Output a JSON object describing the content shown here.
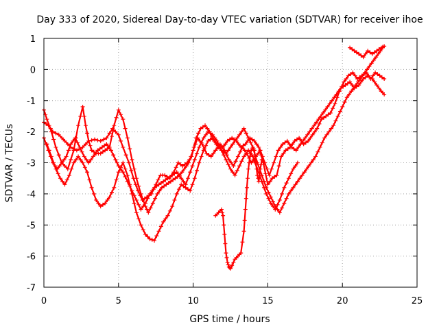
{
  "chart_data": {
    "type": "scatter",
    "title": "Day 333 of 2020, Sidereal Day-to-day VTEC variation (SDTVAR) for receiver ihoe",
    "xlabel": "GPS time / hours",
    "ylabel": "SDTVAR / TECUs",
    "xlim": [
      0,
      25
    ],
    "ylim": [
      -7,
      1
    ],
    "xticks": [
      0,
      5,
      10,
      15,
      20,
      25
    ],
    "yticks": [
      1,
      0,
      -1,
      -2,
      -3,
      -4,
      -5,
      -6,
      -7
    ],
    "grid": true,
    "marker": "plus",
    "color": "#ff0000",
    "series": [
      {
        "x": [
          0.0,
          0.3,
          0.6,
          1.0,
          1.4,
          1.8,
          2.2,
          2.6,
          3.0,
          3.4,
          3.8,
          4.2,
          4.6,
          5.0,
          5.3,
          5.7,
          6.0,
          6.3,
          6.6,
          6.9,
          7.2,
          7.5,
          7.8,
          8.1,
          8.4,
          8.7,
          9.0,
          9.3,
          9.6,
          9.9,
          10.2,
          10.5,
          10.8,
          11.1,
          11.4,
          11.7,
          12.0,
          12.3,
          12.6,
          12.9,
          13.2,
          13.5,
          13.8,
          14.1,
          14.4,
          14.7,
          15.0,
          15.3,
          15.6,
          15.9,
          16.2,
          16.5,
          16.8,
          17.1,
          17.4,
          17.7,
          18.0,
          18.3,
          18.6,
          18.9,
          19.2,
          19.5,
          19.8,
          20.1,
          20.4,
          20.7,
          21.0,
          21.3,
          21.6,
          21.9,
          22.2,
          22.5,
          22.8
        ],
        "y": [
          -1.7,
          -1.8,
          -2.0,
          -2.1,
          -2.3,
          -2.5,
          -2.6,
          -2.5,
          -2.3,
          -2.25,
          -2.3,
          -2.2,
          -1.9,
          -2.1,
          -2.5,
          -3.0,
          -3.5,
          -3.9,
          -4.2,
          -4.1,
          -4.0,
          -3.7,
          -3.4,
          -3.4,
          -3.5,
          -3.3,
          -3.0,
          -3.1,
          -3.0,
          -2.8,
          -2.2,
          -1.9,
          -1.8,
          -2.0,
          -2.3,
          -2.5,
          -2.5,
          -2.3,
          -2.2,
          -2.3,
          -2.5,
          -2.4,
          -2.2,
          -2.3,
          -2.5,
          -3.0,
          -3.7,
          -3.5,
          -3.4,
          -2.8,
          -2.6,
          -2.5,
          -2.3,
          -2.2,
          -2.4,
          -2.3,
          -2.1,
          -1.9,
          -1.6,
          -1.5,
          -1.4,
          -1.1,
          -0.7,
          -0.4,
          -0.2,
          -0.1,
          -0.3,
          -0.2,
          -0.1,
          -0.3,
          -0.1,
          -0.2,
          -0.3
        ]
      },
      {
        "x": [
          0.0,
          0.2,
          0.5,
          0.8,
          1.2,
          1.6,
          2.0,
          2.3,
          2.6,
          2.8,
          3.0,
          3.2,
          3.5,
          3.8,
          4.1,
          4.4,
          4.7,
          5.0,
          5.3,
          5.6,
          5.9,
          6.2,
          6.5,
          6.8,
          7.0,
          7.3,
          7.6,
          7.9,
          8.2,
          8.5,
          8.8,
          9.1,
          9.4,
          9.7,
          10.0,
          10.3,
          10.6,
          10.9,
          11.2,
          11.5,
          11.8,
          12.1,
          12.4,
          12.7,
          13.0,
          13.3,
          13.6,
          13.9,
          14.2,
          14.5,
          14.8,
          15.1,
          15.4,
          15.7,
          16.0,
          16.3,
          16.6,
          16.9,
          17.2,
          17.5,
          17.8,
          18.1,
          18.4,
          18.7,
          19.0,
          19.3,
          19.6,
          19.9,
          20.2,
          20.5,
          20.8,
          21.1,
          21.4,
          21.7,
          22.0,
          22.3,
          22.6,
          22.8
        ],
        "y": [
          -1.3,
          -1.6,
          -2.0,
          -2.5,
          -3.0,
          -3.2,
          -2.6,
          -1.8,
          -1.2,
          -1.8,
          -2.3,
          -2.6,
          -2.7,
          -2.7,
          -2.6,
          -2.5,
          -1.8,
          -1.3,
          -1.6,
          -2.2,
          -2.9,
          -3.5,
          -4.0,
          -4.4,
          -4.6,
          -4.3,
          -4.0,
          -3.8,
          -3.7,
          -3.6,
          -3.5,
          -3.4,
          -3.2,
          -3.0,
          -2.6,
          -2.2,
          -2.4,
          -2.7,
          -2.8,
          -2.6,
          -2.4,
          -2.6,
          -2.9,
          -3.1,
          -2.8,
          -2.5,
          -2.7,
          -3.0,
          -2.8,
          -2.6,
          -3.0,
          -3.4,
          -3.0,
          -2.6,
          -2.4,
          -2.3,
          -2.5,
          -2.6,
          -2.4,
          -2.2,
          -2.0,
          -1.8,
          -1.6,
          -1.4,
          -1.2,
          -1.0,
          -0.8,
          -0.6,
          -0.5,
          -0.4,
          -0.6,
          -0.5,
          -0.3,
          -0.2,
          -0.3,
          -0.5,
          -0.7,
          -0.8
        ]
      },
      {
        "x": [
          0.0,
          0.3,
          0.6,
          0.9,
          1.2,
          1.5,
          1.8,
          2.1,
          2.4,
          2.7,
          3.0,
          3.3,
          3.6,
          3.9,
          4.2,
          4.5,
          4.8,
          5.0,
          5.3,
          5.6,
          5.9,
          6.2,
          6.5,
          6.8,
          7.1,
          7.4,
          7.7,
          8.0,
          8.3,
          8.6,
          8.9,
          9.2,
          9.5,
          9.8,
          10.1,
          10.4,
          10.7,
          11.0,
          11.3,
          11.6,
          11.9,
          12.2,
          12.5,
          12.8,
          13.1,
          13.4,
          13.7,
          14.0,
          14.3,
          14.6,
          14.9,
          15.2,
          15.5,
          15.8,
          16.1,
          16.4,
          16.7,
          17.0,
          17.3,
          17.6,
          17.9,
          18.2,
          18.5,
          18.8,
          19.1,
          19.4,
          19.7,
          20.0,
          20.3,
          20.6,
          20.9,
          21.2,
          21.5,
          21.8,
          22.1,
          22.4,
          22.7
        ],
        "y": [
          -2.2,
          -2.6,
          -3.0,
          -3.2,
          -3.0,
          -2.8,
          -2.4,
          -2.2,
          -2.5,
          -2.8,
          -3.0,
          -2.8,
          -2.6,
          -2.5,
          -2.4,
          -2.6,
          -2.9,
          -3.1,
          -3.3,
          -3.6,
          -3.9,
          -4.2,
          -4.5,
          -4.3,
          -4.0,
          -3.8,
          -3.7,
          -3.6,
          -3.5,
          -3.4,
          -3.3,
          -3.5,
          -3.7,
          -3.3,
          -2.9,
          -2.5,
          -2.2,
          -2.0,
          -2.1,
          -2.3,
          -2.6,
          -2.7,
          -2.5,
          -2.3,
          -2.1,
          -1.9,
          -2.2,
          -2.5,
          -3.0,
          -3.4,
          -3.8,
          -4.1,
          -4.4,
          -4.6,
          -4.3,
          -4.0,
          -3.8,
          -3.6,
          -3.4,
          -3.2,
          -3.0,
          -2.8,
          -2.5,
          -2.2,
          -2.0,
          -1.8,
          -1.5,
          -1.2,
          -0.9,
          -0.7,
          -0.5,
          -0.3,
          -0.1,
          0.1,
          0.3,
          0.5,
          0.7
        ]
      },
      {
        "x": [
          0.2,
          0.5,
          0.8,
          1.1,
          1.4,
          1.7,
          2.0,
          2.3,
          2.6,
          2.9,
          3.2,
          3.5,
          3.8,
          4.1,
          4.4,
          4.7,
          5.0,
          5.3,
          5.6,
          5.9,
          6.2,
          6.5,
          6.8,
          7.1,
          7.4,
          7.7,
          8.0,
          8.3,
          8.6,
          8.9,
          9.2,
          9.5,
          9.8,
          10.1,
          10.4,
          10.7,
          11.0,
          11.3,
          11.6,
          11.9,
          12.2,
          12.5,
          12.8,
          13.1,
          13.4,
          13.7,
          14.0,
          14.3,
          14.6,
          14.9,
          15.2,
          15.5,
          15.8,
          16.1,
          16.4,
          16.7,
          17.0
        ],
        "y": [
          -2.4,
          -2.8,
          -3.2,
          -3.5,
          -3.7,
          -3.4,
          -3.0,
          -2.8,
          -3.0,
          -3.3,
          -3.8,
          -4.2,
          -4.4,
          -4.3,
          -4.1,
          -3.8,
          -3.3,
          -3.0,
          -3.4,
          -4.0,
          -4.6,
          -5.0,
          -5.3,
          -5.45,
          -5.5,
          -5.2,
          -4.9,
          -4.7,
          -4.4,
          -4.0,
          -3.7,
          -3.8,
          -3.9,
          -3.5,
          -3.0,
          -2.6,
          -2.3,
          -2.2,
          -2.4,
          -2.6,
          -2.9,
          -3.2,
          -3.4,
          -3.1,
          -2.8,
          -2.6,
          -2.8,
          -3.2,
          -3.6,
          -4.0,
          -4.3,
          -4.5,
          -4.2,
          -3.8,
          -3.5,
          -3.2,
          -3.0
        ]
      },
      {
        "x": [
          11.5,
          11.7,
          11.9,
          12.0,
          12.1,
          12.2,
          12.3,
          12.4,
          12.5,
          12.6,
          12.8,
          13.0,
          13.2,
          13.4,
          13.5,
          13.6,
          13.7,
          13.8,
          13.9,
          14.0,
          14.1,
          14.2,
          14.3,
          14.4,
          14.5,
          14.6
        ],
        "y": [
          -4.7,
          -4.6,
          -4.5,
          -4.7,
          -5.3,
          -5.9,
          -6.2,
          -6.35,
          -6.4,
          -6.3,
          -6.1,
          -6.0,
          -5.9,
          -5.2,
          -4.5,
          -3.8,
          -3.2,
          -2.8,
          -2.6,
          -2.5,
          -2.6,
          -3.0,
          -3.4,
          -3.6,
          -3.2,
          -2.9
        ]
      },
      {
        "x": [
          20.5,
          20.8,
          21.1,
          21.4,
          21.7,
          22.0,
          22.3,
          22.6,
          22.8
        ],
        "y": [
          0.7,
          0.6,
          0.5,
          0.4,
          0.6,
          0.5,
          0.6,
          0.7,
          0.75
        ]
      }
    ]
  }
}
